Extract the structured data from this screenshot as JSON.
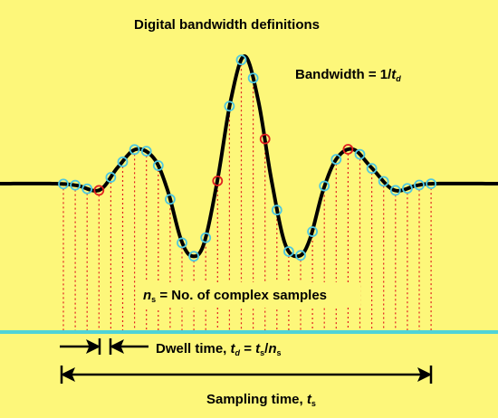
{
  "title": "Digital bandwidth definitions",
  "bandwidth": {
    "text": "Bandwidth = 1/",
    "var": "t",
    "sub": "d"
  },
  "samples": {
    "var": "n",
    "sub": "s",
    "text": " = No. of complex samples"
  },
  "dwell": {
    "text": "Dwell time, ",
    "var": "t",
    "sub": "d",
    "eq": " = ",
    "var2": "t",
    "sub2": "s",
    "slash": "/",
    "var3": "n",
    "sub3": "s"
  },
  "sampling": {
    "text": "Sampling time, ",
    "var": "t",
    "sub": "s"
  }
}
